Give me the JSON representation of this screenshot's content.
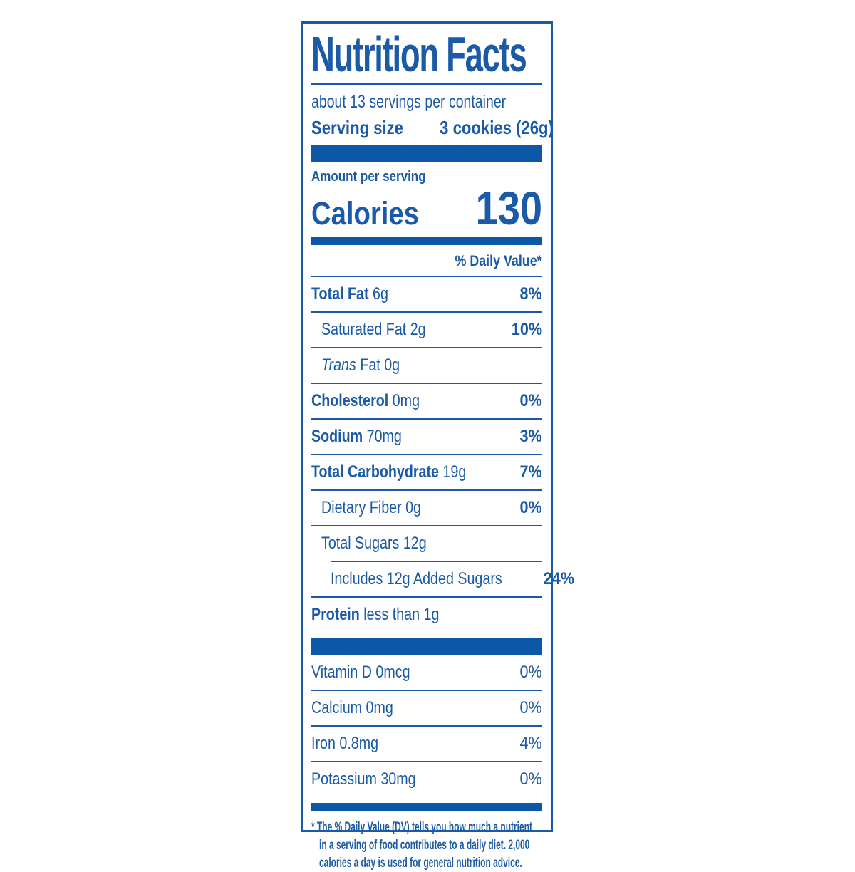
{
  "colors": {
    "text": "#1a5aa6",
    "bar": "#0d58a6"
  },
  "label": {
    "title": "Nutrition Facts",
    "servings_per_container": "about 13 servings per container",
    "serving_size_label": "Serving size",
    "serving_size_value": "3 cookies (26g)",
    "amount_per_serving": "Amount per serving",
    "calories_label": "Calories",
    "calories_value": "130",
    "daily_value_header": "% Daily Value*",
    "nutrients": [
      {
        "parts": [
          {
            "t": "Total Fat",
            "s": "b"
          },
          {
            "t": " 6g",
            "s": "r"
          }
        ],
        "value": "8%",
        "value_bold": true,
        "indent": 0,
        "sep": "full"
      },
      {
        "parts": [
          {
            "t": "Saturated Fat 2g",
            "s": "r"
          }
        ],
        "value": "10%",
        "value_bold": true,
        "indent": 1,
        "sep": "full"
      },
      {
        "parts": [
          {
            "t": "Trans",
            "s": "i"
          },
          {
            "t": " Fat 0g",
            "s": "r"
          }
        ],
        "value": "",
        "value_bold": false,
        "indent": 1,
        "sep": "full"
      },
      {
        "parts": [
          {
            "t": "Cholesterol",
            "s": "b"
          },
          {
            "t": " 0mg",
            "s": "r"
          }
        ],
        "value": "0%",
        "value_bold": true,
        "indent": 0,
        "sep": "full"
      },
      {
        "parts": [
          {
            "t": "Sodium",
            "s": "b"
          },
          {
            "t": " 70mg",
            "s": "r"
          }
        ],
        "value": "3%",
        "value_bold": true,
        "indent": 0,
        "sep": "full"
      },
      {
        "parts": [
          {
            "t": "Total Carbohydrate",
            "s": "b"
          },
          {
            "t": " 19g",
            "s": "r"
          }
        ],
        "value": "7%",
        "value_bold": true,
        "indent": 0,
        "sep": "full"
      },
      {
        "parts": [
          {
            "t": "Dietary Fiber 0g",
            "s": "r"
          }
        ],
        "value": "0%",
        "value_bold": true,
        "indent": 1,
        "sep": "full"
      },
      {
        "parts": [
          {
            "t": "Total Sugars 12g",
            "s": "r"
          }
        ],
        "value": "",
        "value_bold": false,
        "indent": 1,
        "sep": "indent"
      },
      {
        "parts": [
          {
            "t": "Includes 12g Added Sugars",
            "s": "r"
          }
        ],
        "value": "24%",
        "value_bold": true,
        "indent": 2,
        "sep": "full"
      },
      {
        "parts": [
          {
            "t": "Protein",
            "s": "b"
          },
          {
            "t": " less than 1g",
            "s": "r"
          }
        ],
        "value": "",
        "value_bold": false,
        "indent": 0,
        "sep": "none"
      }
    ],
    "vitamins": [
      {
        "label": "Vitamin D 0mcg",
        "value": "0%",
        "sep": "full"
      },
      {
        "label": "Calcium 0mg",
        "value": "0%",
        "sep": "full"
      },
      {
        "label": "Iron 0.8mg",
        "value": "4%",
        "sep": "full"
      },
      {
        "label": "Potassium 30mg",
        "value": "0%",
        "sep": "none"
      }
    ],
    "footnote_lines": [
      "* The % Daily Value (DV) tells you how much a nutrient",
      "in a serving of food contributes to a daily diet. 2,000",
      "calories a day is used for general nutrition advice."
    ]
  }
}
